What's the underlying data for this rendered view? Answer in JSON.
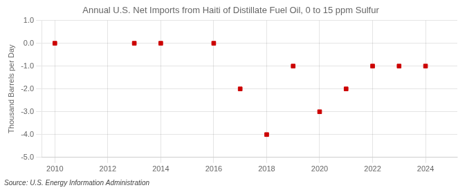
{
  "chart_data": {
    "type": "scatter",
    "title": "Annual U.S. Net Imports from Haiti of Distillate Fuel Oil, 0 to 15 ppm Sulfur",
    "ylabel": "Thousand Barrels per Day",
    "annotations": [
      "Source: U.S. Energy Information Administration"
    ],
    "x": [
      2010,
      2013,
      2014,
      2016,
      2017,
      2018,
      2019,
      2020,
      2021,
      2022,
      2023,
      2024
    ],
    "values": [
      0,
      0,
      0,
      0,
      -2,
      -4,
      -1,
      -3,
      -2,
      -1,
      -1,
      -1
    ],
    "color": "#cc0000",
    "marker": "square",
    "xlim": [
      2009.5,
      2025.2
    ],
    "xticks": [
      2010,
      2012,
      2014,
      2016,
      2018,
      2020,
      2022,
      2024
    ],
    "ylim": [
      -5.0,
      1.0
    ],
    "yticks": [
      {
        "value": -5,
        "label": "-5.0"
      },
      {
        "value": -4,
        "label": "-4.0"
      },
      {
        "value": -3,
        "label": "-3.0"
      },
      {
        "value": -2,
        "label": "-2.0"
      },
      {
        "value": -1,
        "label": "-1.0"
      },
      {
        "value": 0,
        "label": "0.0"
      },
      {
        "value": 1,
        "label": "1.0"
      }
    ],
    "grid": true
  }
}
